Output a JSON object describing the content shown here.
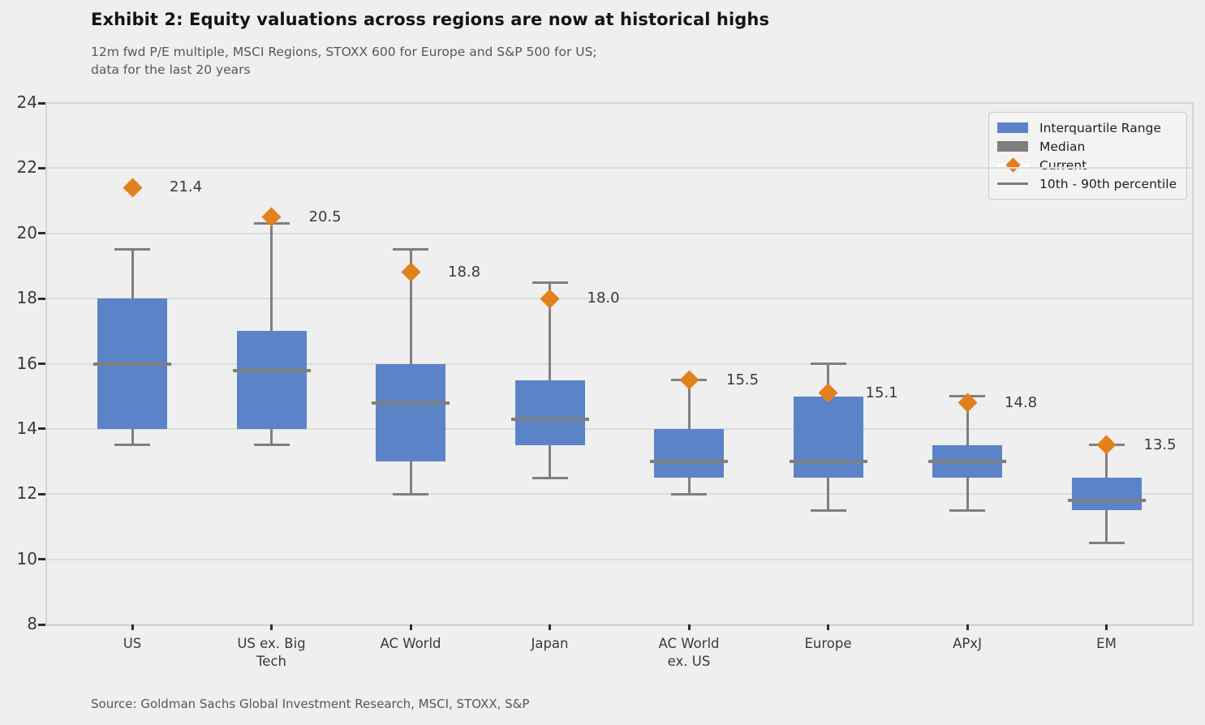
{
  "header": {
    "title": "Exhibit 2: Equity valuations across regions are now at historical highs",
    "subtitle": "12m fwd P/E multiple, MSCI Regions, STOXX 600 for Europe and S&P 500 for US;\ndata for the last 20 years"
  },
  "footer": {
    "source": "Source: Goldman Sachs Global Investment Research, MSCI, STOXX, S&P"
  },
  "legend": {
    "items": [
      {
        "label": "Interquartile Range",
        "marker": "rect",
        "color": "#5b84c8"
      },
      {
        "label": "Median",
        "marker": "rect",
        "color": "#7f7f7f"
      },
      {
        "label": "Current",
        "marker": "diamond",
        "color": "#e2801c"
      },
      {
        "label": "10th - 90th percentile",
        "marker": "line",
        "color": "#7f7f7f"
      }
    ]
  },
  "chart_data": {
    "type": "boxplot",
    "title": "Exhibit 2: Equity valuations across regions are now at historical highs",
    "subtitle": "12m fwd P/E multiple, MSCI Regions, STOXX 600 for Europe and S&P 500 for US; data for the last 20 years",
    "xlabel": "",
    "ylabel": "12m fwd P/E multiple",
    "ylim": [
      8,
      24
    ],
    "yticks": [
      24,
      22,
      20,
      18,
      16,
      14,
      12,
      10,
      8
    ],
    "grid": true,
    "legend_position": "upper right",
    "categories": [
      "US",
      "US ex. Big\nTech",
      "AC World",
      "Japan",
      "AC World\nex. US",
      "Europe",
      "APxJ",
      "EM"
    ],
    "series": [
      {
        "category": "US",
        "p10": 13.5,
        "q1": 14.0,
        "median": 16.0,
        "q3": 18.0,
        "p90": 19.5,
        "current": 21.4,
        "current_label": "21.4"
      },
      {
        "category": "US ex. Big Tech",
        "p10": 13.5,
        "q1": 14.0,
        "median": 15.8,
        "q3": 17.0,
        "p90": 20.3,
        "current": 20.5,
        "current_label": "20.5"
      },
      {
        "category": "AC World",
        "p10": 12.0,
        "q1": 13.0,
        "median": 14.8,
        "q3": 16.0,
        "p90": 19.5,
        "current": 18.8,
        "current_label": "18.8"
      },
      {
        "category": "Japan",
        "p10": 12.5,
        "q1": 13.5,
        "median": 14.3,
        "q3": 15.5,
        "p90": 18.5,
        "current": 18.0,
        "current_label": "18.0"
      },
      {
        "category": "AC World ex. US",
        "p10": 12.0,
        "q1": 12.5,
        "median": 13.0,
        "q3": 14.0,
        "p90": 15.5,
        "current": 15.5,
        "current_label": "15.5"
      },
      {
        "category": "Europe",
        "p10": 11.5,
        "q1": 12.5,
        "median": 13.0,
        "q3": 15.0,
        "p90": 16.0,
        "current": 15.1,
        "current_label": "15.1"
      },
      {
        "category": "APxJ",
        "p10": 11.5,
        "q1": 12.5,
        "median": 13.0,
        "q3": 13.5,
        "p90": 15.0,
        "current": 14.8,
        "current_label": "14.8"
      },
      {
        "category": "EM",
        "p10": 10.5,
        "q1": 11.5,
        "median": 11.8,
        "q3": 12.5,
        "p90": 13.5,
        "current": 13.5,
        "current_label": "13.5"
      }
    ],
    "colors": {
      "box": "#5b84c8",
      "median": "#7f7f7f",
      "whisker": "#7f7f7f",
      "current": "#e2801c",
      "background": "#efefef",
      "gridline": "#dcdcdc"
    }
  }
}
